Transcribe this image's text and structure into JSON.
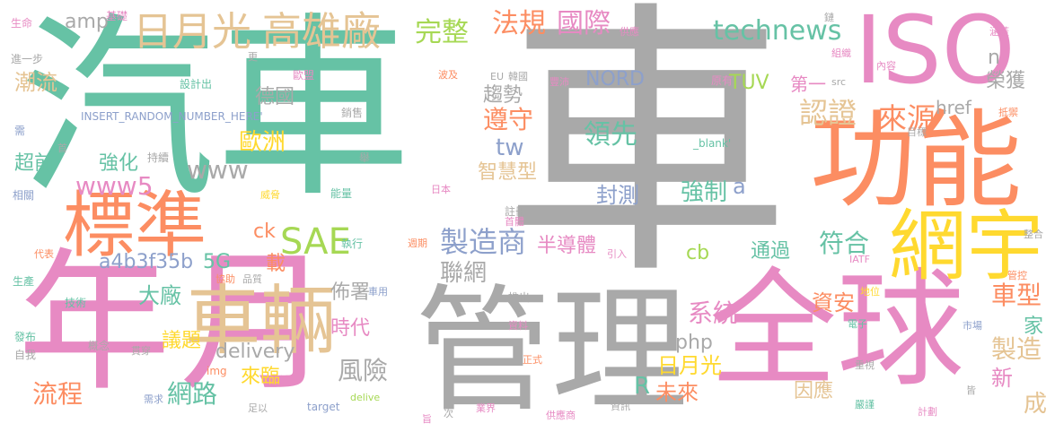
{
  "colors": {
    "gray": "#a9a9a9",
    "green": "#66c2a5",
    "orange": "#fc8d62",
    "pink": "#e78ac3",
    "blue": "#8da0cb",
    "tan": "#e5c494",
    "yellow": "#ffd92f",
    "lime": "#a6d854"
  },
  "words": [
    {
      "id": "che-big",
      "text": "車",
      "color": "gray"
    },
    {
      "id": "qiche",
      "text": "汽車",
      "color": "green"
    },
    {
      "id": "nian",
      "text": "年",
      "color": "pink"
    },
    {
      "id": "yue",
      "text": "月",
      "color": "pink"
    },
    {
      "id": "guanli",
      "text": "管理",
      "color": "gray"
    },
    {
      "id": "quanqiu",
      "text": "全球",
      "color": "pink"
    },
    {
      "id": "iso",
      "text": "ISO",
      "color": "pink"
    },
    {
      "id": "gongneng",
      "text": "功能",
      "color": "orange"
    },
    {
      "id": "biaozhun",
      "text": "標準",
      "color": "orange"
    },
    {
      "id": "cheliang",
      "text": "車輛",
      "color": "tan"
    },
    {
      "id": "wangyu",
      "text": "網宇",
      "color": "yellow"
    },
    {
      "id": "riyueguang-top",
      "text": "日月光",
      "color": "tan"
    },
    {
      "id": "gaoxiongchang",
      "text": "高雄廠",
      "color": "tan"
    },
    {
      "id": "wanzheng",
      "text": "完整",
      "color": "lime"
    },
    {
      "id": "fagui",
      "text": "法規",
      "color": "orange"
    },
    {
      "id": "guoji",
      "text": "國際",
      "color": "pink"
    },
    {
      "id": "technews",
      "text": "technews",
      "color": "green"
    },
    {
      "id": "sae",
      "text": "SAE",
      "color": "lime"
    },
    {
      "id": "zhizaoshang",
      "text": "製造商",
      "color": "blue"
    },
    {
      "id": "renzheng",
      "text": "認證",
      "color": "tan"
    },
    {
      "id": "laiyuan",
      "text": "來源",
      "color": "orange"
    },
    {
      "id": "rongzhu",
      "text": "榮獲",
      "color": "gray"
    },
    {
      "id": "n",
      "text": "n",
      "color": "gray"
    },
    {
      "id": "href",
      "text": "href",
      "color": "gray"
    },
    {
      "id": "oumeng",
      "text": "歐盟",
      "color": "pink"
    },
    {
      "id": "eu",
      "text": "EU",
      "color": "gray"
    },
    {
      "id": "nord",
      "text": "NORD",
      "color": "blue"
    },
    {
      "id": "tuv",
      "text": "TUV",
      "color": "lime"
    },
    {
      "id": "di-yi",
      "text": "第一",
      "color": "pink"
    },
    {
      "id": "yuanyou",
      "text": "原有",
      "color": "pink"
    },
    {
      "id": "zunshou",
      "text": "遵守",
      "color": "orange"
    },
    {
      "id": "qushi",
      "text": "趨勢",
      "color": "gray"
    },
    {
      "id": "lingxian",
      "text": "領先",
      "color": "green"
    },
    {
      "id": "tw",
      "text": "tw",
      "color": "blue"
    },
    {
      "id": "zhihuixing",
      "text": "智慧型",
      "color": "tan"
    },
    {
      "id": "ouzhou",
      "text": "歐洲",
      "color": "yellow"
    },
    {
      "id": "www",
      "text": "www",
      "color": "gray"
    },
    {
      "id": "www5",
      "text": "www5",
      "color": "pink"
    },
    {
      "id": "deguo",
      "text": "德國",
      "color": "gray"
    },
    {
      "id": "amp",
      "text": "amp",
      "color": "gray"
    },
    {
      "id": "chaoliu",
      "text": "潮流",
      "color": "tan"
    },
    {
      "id": "chaoqian",
      "text": "超前",
      "color": "green"
    },
    {
      "id": "qianghua",
      "text": "強化",
      "color": "green"
    },
    {
      "id": "fengce",
      "text": "封測",
      "color": "blue"
    },
    {
      "id": "qiangzhi",
      "text": "強制",
      "color": "green"
    },
    {
      "id": "a",
      "text": "a",
      "color": "blue"
    },
    {
      "id": "blank",
      "text": "_blank'",
      "color": "green"
    },
    {
      "id": "fuhe",
      "text": "符合",
      "color": "green"
    },
    {
      "id": "chexing",
      "text": "車型",
      "color": "orange"
    },
    {
      "id": "zhizao",
      "text": "製造",
      "color": "tan"
    },
    {
      "id": "jia",
      "text": "家",
      "color": "green"
    },
    {
      "id": "xin",
      "text": "新",
      "color": "pink"
    },
    {
      "id": "cheng",
      "text": "成",
      "color": "tan"
    },
    {
      "id": "bandaoti",
      "text": "半導體",
      "color": "pink"
    },
    {
      "id": "cb",
      "text": "cb",
      "color": "lime"
    },
    {
      "id": "tongguo",
      "text": "通過",
      "color": "green"
    },
    {
      "id": "a4b3",
      "text": "a4b3f35b",
      "color": "blue"
    },
    {
      "id": "5g",
      "text": "5G",
      "color": "green"
    },
    {
      "id": "zai",
      "text": "載",
      "color": "orange"
    },
    {
      "id": "ck",
      "text": "ck",
      "color": "orange"
    },
    {
      "id": "lianwang",
      "text": "聯網",
      "color": "gray"
    },
    {
      "id": "bushu",
      "text": "佈署",
      "color": "gray"
    },
    {
      "id": "dachang",
      "text": "大廠",
      "color": "green"
    },
    {
      "id": "shidai",
      "text": "時代",
      "color": "pink"
    },
    {
      "id": "yiti",
      "text": "議題",
      "color": "yellow"
    },
    {
      "id": "delivery",
      "text": "delivery",
      "color": "gray"
    },
    {
      "id": "fengxian",
      "text": "風險",
      "color": "gray"
    },
    {
      "id": "xitong",
      "text": "系統",
      "color": "pink"
    },
    {
      "id": "php",
      "text": "php",
      "color": "gray"
    },
    {
      "id": "zian",
      "text": "資安",
      "color": "orange"
    },
    {
      "id": "riyueguang-bot",
      "text": "日月光",
      "color": "yellow"
    },
    {
      "id": "r",
      "text": "R",
      "color": "green"
    },
    {
      "id": "weilai",
      "text": "未來",
      "color": "orange"
    },
    {
      "id": "liucheng",
      "text": "流程",
      "color": "orange"
    },
    {
      "id": "wanglu",
      "text": "網路",
      "color": "green"
    },
    {
      "id": "lailin",
      "text": "來臨",
      "color": "yellow"
    },
    {
      "id": "yinying",
      "text": "因應",
      "color": "tan"
    },
    {
      "id": "insert",
      "text": "INSERT_RANDOM_NUMBER_HERE'",
      "color": "blue"
    },
    {
      "id": "shengming",
      "text": "生命",
      "color": "pink"
    },
    {
      "id": "jichu",
      "text": "基礎",
      "color": "pink"
    },
    {
      "id": "jinyibu",
      "text": "進一步",
      "color": "gray"
    },
    {
      "id": "sheji",
      "text": "設計出",
      "color": "green"
    },
    {
      "id": "xu",
      "text": "需",
      "color": "blue"
    },
    {
      "id": "shou",
      "text": "首",
      "color": "gray"
    },
    {
      "id": "chixu",
      "text": "持續",
      "color": "gray"
    },
    {
      "id": "xiangguan",
      "text": "相關",
      "color": "blue"
    },
    {
      "id": "weixie",
      "text": "威脅",
      "color": "yellow"
    },
    {
      "id": "xiaoshou",
      "text": "銷售",
      "color": "gray"
    },
    {
      "id": "ju",
      "text": "舉",
      "color": "gray"
    },
    {
      "id": "nengliang",
      "text": "能量",
      "color": "green"
    },
    {
      "id": "riben",
      "text": "日本",
      "color": "pink"
    },
    {
      "id": "zhuce",
      "text": "註冊",
      "color": "gray"
    },
    {
      "id": "shouyu",
      "text": "首體",
      "color": "pink"
    },
    {
      "id": "zhixing",
      "text": "執行",
      "color": "green"
    },
    {
      "id": "zhouqi",
      "text": "週期",
      "color": "orange"
    },
    {
      "id": "daibiao",
      "text": "代表",
      "color": "orange"
    },
    {
      "id": "xiezhu",
      "text": "協助",
      "color": "orange"
    },
    {
      "id": "pinzhi",
      "text": "品質",
      "color": "gray"
    },
    {
      "id": "yinru",
      "text": "引入",
      "color": "pink"
    },
    {
      "id": "shengchan",
      "text": "生產",
      "color": "green"
    },
    {
      "id": "jishu",
      "text": "技術",
      "color": "green"
    },
    {
      "id": "cheyong",
      "text": "車用",
      "color": "blue"
    },
    {
      "id": "tuichu",
      "text": "推出",
      "color": "gray"
    },
    {
      "id": "fabu",
      "text": "發布",
      "color": "green"
    },
    {
      "id": "gainian",
      "text": "概念",
      "color": "gray"
    },
    {
      "id": "ziwo",
      "text": "自我",
      "color": "gray"
    },
    {
      "id": "guanchuan",
      "text": "貫穿",
      "color": "gray"
    },
    {
      "id": "img",
      "text": "img",
      "color": "orange"
    },
    {
      "id": "ziliao",
      "text": "資料",
      "color": "pink"
    },
    {
      "id": "xuqiu",
      "text": "需求",
      "color": "blue"
    },
    {
      "id": "zuyi",
      "text": "足以",
      "color": "gray"
    },
    {
      "id": "target",
      "text": "target",
      "color": "blue"
    },
    {
      "id": "delive",
      "text": "delive",
      "color": "lime"
    },
    {
      "id": "zhi",
      "text": "旨",
      "color": "pink"
    },
    {
      "id": "ci",
      "text": "次",
      "color": "gray"
    },
    {
      "id": "yejie",
      "text": "業界",
      "color": "pink"
    },
    {
      "id": "zhengshi",
      "text": "正式",
      "color": "orange"
    },
    {
      "id": "gongyingshang",
      "text": "供應商",
      "color": "pink"
    },
    {
      "id": "zixun",
      "text": "資訊",
      "color": "gray"
    },
    {
      "id": "lian",
      "text": "鏈",
      "color": "gray"
    },
    {
      "id": "gongying",
      "text": "供應",
      "color": "pink"
    },
    {
      "id": "hangai",
      "text": "涵蓋",
      "color": "pink"
    },
    {
      "id": "zuzhi",
      "text": "組織",
      "color": "pink"
    },
    {
      "id": "neirong",
      "text": "內容",
      "color": "pink"
    },
    {
      "id": "geng",
      "text": "更",
      "color": "gray"
    },
    {
      "id": "bo",
      "text": "波及",
      "color": "orange"
    },
    {
      "id": "hanguo",
      "text": "韓國",
      "color": "gray"
    },
    {
      "id": "fengpei",
      "text": "豐沛",
      "color": "pink"
    },
    {
      "id": "src",
      "text": "src",
      "color": "gray"
    },
    {
      "id": "diyu",
      "text": "抵禦",
      "color": "orange"
    },
    {
      "id": "mubiao",
      "text": "目標",
      "color": "gray"
    },
    {
      "id": "zhenghe",
      "text": "整合",
      "color": "gray"
    },
    {
      "id": "iatf",
      "text": "IATF",
      "color": "pink"
    },
    {
      "id": "guankong",
      "text": "管控",
      "color": "orange"
    },
    {
      "id": "diwei",
      "text": "地位",
      "color": "yellow"
    },
    {
      "id": "dianzi",
      "text": "電子",
      "color": "green"
    },
    {
      "id": "shichang",
      "text": "市場",
      "color": "blue"
    },
    {
      "id": "zhongshi",
      "text": "重視",
      "color": "gray"
    },
    {
      "id": "jie",
      "text": "皆",
      "color": "gray"
    },
    {
      "id": "yanjin",
      "text": "嚴謹",
      "color": "green"
    },
    {
      "id": "jihua",
      "text": "計劃",
      "color": "pink"
    }
  ]
}
